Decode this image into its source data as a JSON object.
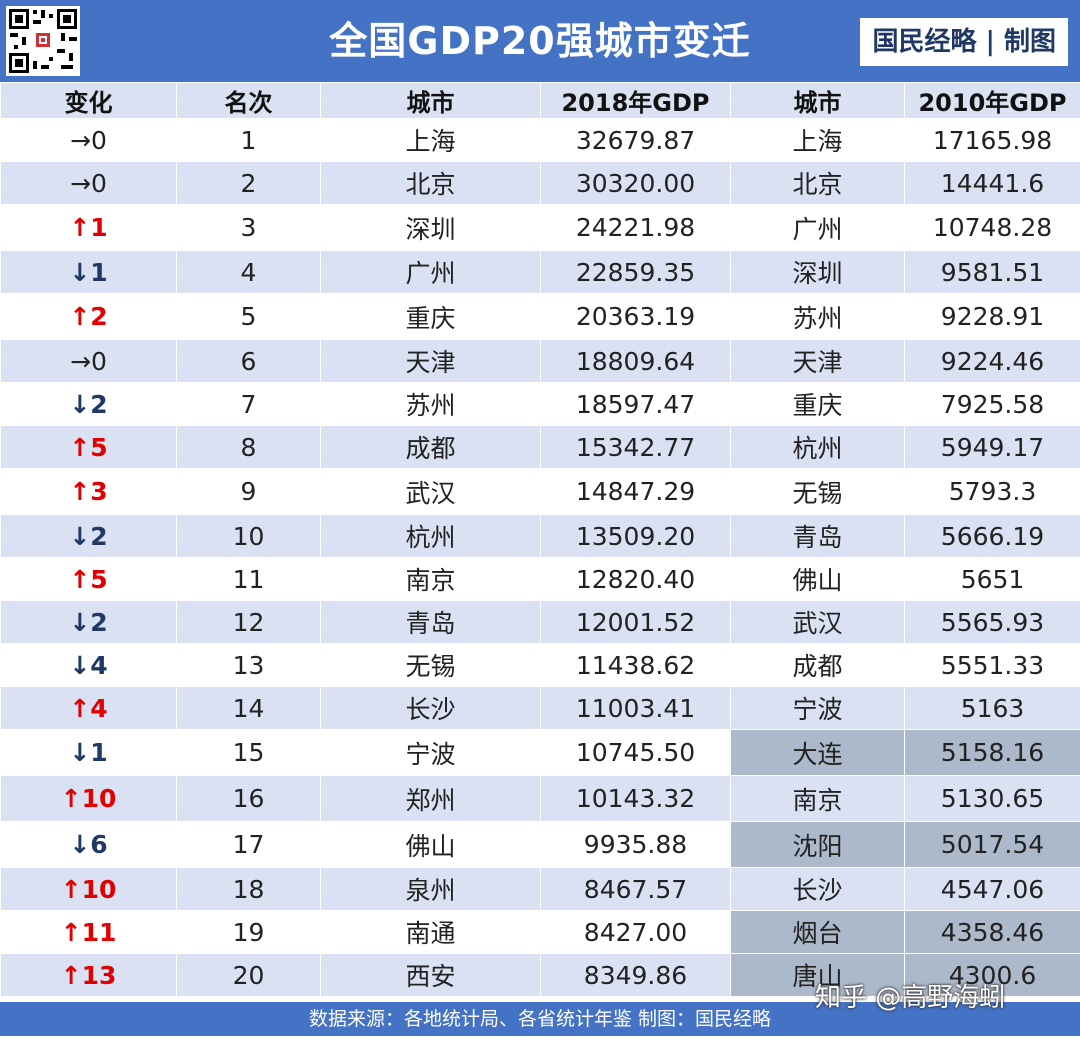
{
  "title": "全国GDP20强城市变迁",
  "brand": "国民经略 | 制图",
  "headers": [
    "变化",
    "名次",
    "城市",
    "2018年GDP",
    "城市",
    "2010年GDP"
  ],
  "rows": [
    {
      "change": "→0",
      "dir": "flat",
      "rank": "1",
      "city2018": "上海",
      "gdp2018": "32679.87",
      "city2010": "上海",
      "gdp2010": "17165.98"
    },
    {
      "change": "→0",
      "dir": "flat",
      "rank": "2",
      "city2018": "北京",
      "gdp2018": "30320.00",
      "city2010": "北京",
      "gdp2010": "14441.6"
    },
    {
      "change": "↑1",
      "dir": "up",
      "rank": "3",
      "city2018": "深圳",
      "gdp2018": "24221.98",
      "city2010": "广州",
      "gdp2010": "10748.28"
    },
    {
      "change": "↓1",
      "dir": "down",
      "rank": "4",
      "city2018": "广州",
      "gdp2018": "22859.35",
      "city2010": "深圳",
      "gdp2010": "9581.51"
    },
    {
      "change": "↑2",
      "dir": "up",
      "rank": "5",
      "city2018": "重庆",
      "gdp2018": "20363.19",
      "city2010": "苏州",
      "gdp2010": "9228.91"
    },
    {
      "change": "→0",
      "dir": "flat",
      "rank": "6",
      "city2018": "天津",
      "gdp2018": "18809.64",
      "city2010": "天津",
      "gdp2010": "9224.46"
    },
    {
      "change": "↓2",
      "dir": "down",
      "rank": "7",
      "city2018": "苏州",
      "gdp2018": "18597.47",
      "city2010": "重庆",
      "gdp2010": "7925.58"
    },
    {
      "change": "↑5",
      "dir": "up",
      "rank": "8",
      "city2018": "成都",
      "gdp2018": "15342.77",
      "city2010": "杭州",
      "gdp2010": "5949.17"
    },
    {
      "change": "↑3",
      "dir": "up",
      "rank": "9",
      "city2018": "武汉",
      "gdp2018": "14847.29",
      "city2010": "无锡",
      "gdp2010": "5793.3"
    },
    {
      "change": "↓2",
      "dir": "down",
      "rank": "10",
      "city2018": "杭州",
      "gdp2018": "13509.20",
      "city2010": "青岛",
      "gdp2010": "5666.19"
    },
    {
      "change": "↑5",
      "dir": "up",
      "rank": "11",
      "city2018": "南京",
      "gdp2018": "12820.40",
      "city2010": "佛山",
      "gdp2010": "5651"
    },
    {
      "change": "↓2",
      "dir": "down",
      "rank": "12",
      "city2018": "青岛",
      "gdp2018": "12001.52",
      "city2010": "武汉",
      "gdp2010": "5565.93"
    },
    {
      "change": "↓4",
      "dir": "down",
      "rank": "13",
      "city2018": "无锡",
      "gdp2018": "11438.62",
      "city2010": "成都",
      "gdp2010": "5551.33"
    },
    {
      "change": "↑4",
      "dir": "up",
      "rank": "14",
      "city2018": "长沙",
      "gdp2018": "11003.41",
      "city2010": "宁波",
      "gdp2010": "5163"
    },
    {
      "change": "↓1",
      "dir": "down",
      "rank": "15",
      "city2018": "宁波",
      "gdp2018": "10745.50",
      "city2010": "大连",
      "gdp2010": "5158.16",
      "dropped": true
    },
    {
      "change": "↑10",
      "dir": "up",
      "rank": "16",
      "city2018": "郑州",
      "gdp2018": "10143.32",
      "city2010": "南京",
      "gdp2010": "5130.65"
    },
    {
      "change": "↓6",
      "dir": "down",
      "rank": "17",
      "city2018": "佛山",
      "gdp2018": "9935.88",
      "city2010": "沈阳",
      "gdp2010": "5017.54",
      "dropped": true
    },
    {
      "change": "↑10",
      "dir": "up",
      "rank": "18",
      "city2018": "泉州",
      "gdp2018": "8467.57",
      "city2010": "长沙",
      "gdp2010": "4547.06"
    },
    {
      "change": "↑11",
      "dir": "up",
      "rank": "19",
      "city2018": "南通",
      "gdp2018": "8427.00",
      "city2010": "烟台",
      "gdp2010": "4358.46",
      "dropped": true
    },
    {
      "change": "↑13",
      "dir": "up",
      "rank": "20",
      "city2018": "西安",
      "gdp2018": "8349.86",
      "city2010": "唐山",
      "gdp2010": "4300.6",
      "dropped": true
    }
  ],
  "footer": "数据来源：各地统计局、各省统计年鉴  制图：国民经略",
  "watermark_text": "知乎 @高野海蚓",
  "watermark_bg": "国民经略",
  "colors": {
    "header": "#4472c4",
    "band": "#d9e1f2",
    "highlight": "#acb9ca",
    "up": "#e00000",
    "down": "#1f3864"
  },
  "chart_data": {
    "type": "table",
    "title": "全国GDP20强城市变迁",
    "columns": [
      "变化",
      "名次",
      "城市",
      "2018年GDP",
      "城市",
      "2010年GDP"
    ],
    "values": [
      [
        "→0",
        "1",
        "上海",
        "32679.87",
        "上海",
        "17165.98"
      ],
      [
        "→0",
        "2",
        "北京",
        "30320.00",
        "北京",
        "14441.6"
      ],
      [
        "↑1",
        "3",
        "深圳",
        "24221.98",
        "广州",
        "10748.28"
      ],
      [
        "↓1",
        "4",
        "广州",
        "22859.35",
        "深圳",
        "9581.51"
      ],
      [
        "↑2",
        "5",
        "重庆",
        "20363.19",
        "苏州",
        "9228.91"
      ],
      [
        "→0",
        "6",
        "天津",
        "18809.64",
        "天津",
        "9224.46"
      ],
      [
        "↓2",
        "7",
        "苏州",
        "18597.47",
        "重庆",
        "7925.58"
      ],
      [
        "↑5",
        "8",
        "成都",
        "15342.77",
        "杭州",
        "5949.17"
      ],
      [
        "↑3",
        "9",
        "武汉",
        "14847.29",
        "无锡",
        "5793.3"
      ],
      [
        "↓2",
        "10",
        "杭州",
        "13509.20",
        "青岛",
        "5666.19"
      ],
      [
        "↑5",
        "11",
        "南京",
        "12820.40",
        "佛山",
        "5651"
      ],
      [
        "↓2",
        "12",
        "青岛",
        "12001.52",
        "武汉",
        "5565.93"
      ],
      [
        "↓4",
        "13",
        "无锡",
        "11438.62",
        "成都",
        "5551.33"
      ],
      [
        "↑4",
        "14",
        "长沙",
        "11003.41",
        "宁波",
        "5163"
      ],
      [
        "↓1",
        "15",
        "宁波",
        "10745.50",
        "大连",
        "5158.16"
      ],
      [
        "↑10",
        "16",
        "郑州",
        "10143.32",
        "南京",
        "5130.65"
      ],
      [
        "↓6",
        "17",
        "佛山",
        "9935.88",
        "沈阳",
        "5017.54"
      ],
      [
        "↑10",
        "18",
        "泉州",
        "8467.57",
        "长沙",
        "4547.06"
      ],
      [
        "↑11",
        "19",
        "南通",
        "8427.00",
        "烟台",
        "4358.46"
      ],
      [
        "↑13",
        "20",
        "西安",
        "8349.86",
        "唐山",
        "4300.6"
      ]
    ]
  }
}
